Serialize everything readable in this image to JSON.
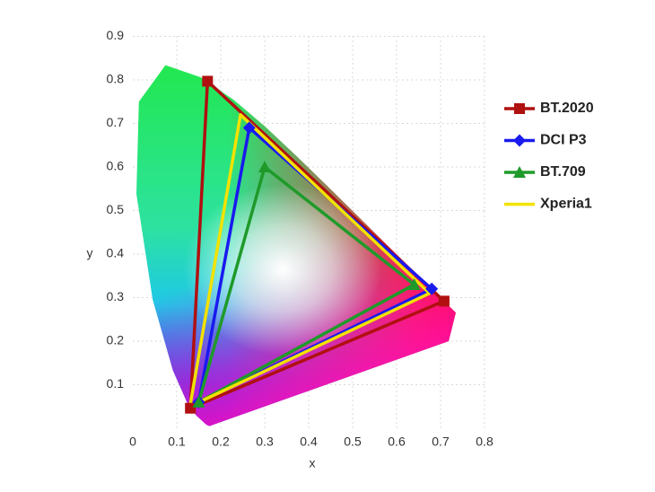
{
  "chart_data": {
    "type": "polygon",
    "xlabel": "x",
    "ylabel": "y",
    "xlim": [
      0,
      0.8
    ],
    "ylim": [
      0,
      0.9
    ],
    "xticks": [
      0,
      0.1,
      0.2,
      0.3,
      0.4,
      0.5,
      0.6,
      0.7,
      0.8
    ],
    "yticks": [
      0.1,
      0.2,
      0.3,
      0.4,
      0.5,
      0.6,
      0.7,
      0.8,
      0.9
    ],
    "grid": true,
    "legend": "right",
    "series": [
      {
        "name": "BT.2020",
        "color": "#b01010",
        "marker": "square",
        "x": [
          0.708,
          0.17,
          0.131
        ],
        "y": [
          0.292,
          0.797,
          0.046
        ]
      },
      {
        "name": "DCI P3",
        "color": "#1a1aee",
        "marker": "diamond",
        "x": [
          0.68,
          0.265,
          0.15
        ],
        "y": [
          0.32,
          0.69,
          0.06
        ]
      },
      {
        "name": "BT.709",
        "color": "#1f9a2a",
        "marker": "triangle",
        "x": [
          0.64,
          0.3,
          0.15
        ],
        "y": [
          0.33,
          0.6,
          0.06
        ]
      },
      {
        "name": "Xperia1",
        "color": "#f2e200",
        "marker": "none",
        "x": [
          0.675,
          0.245,
          0.13
        ],
        "y": [
          0.31,
          0.72,
          0.05
        ]
      }
    ]
  }
}
